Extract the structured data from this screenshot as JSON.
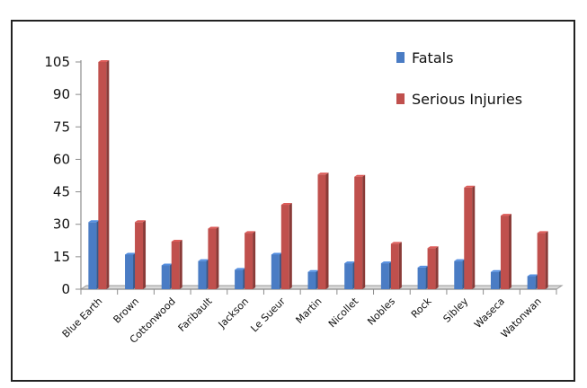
{
  "chart_data": {
    "type": "bar",
    "title": "",
    "xlabel": "",
    "ylabel": "",
    "categories": [
      "Blue Earth",
      "Brown",
      "Cottonwood",
      "Faribault",
      "Jackson",
      "Le Sueur",
      "Martin",
      "Nicollet",
      "Nobles",
      "Rock",
      "Sibley",
      "Waseca",
      "Watonwan"
    ],
    "series": [
      {
        "name": "Fatals",
        "color": "#4a7cc4",
        "values": [
          31,
          16,
          11,
          13,
          9,
          16,
          8,
          12,
          12,
          10,
          13,
          8,
          6
        ]
      },
      {
        "name": "Serious Injuries",
        "color": "#c0504d",
        "values": [
          105,
          31,
          22,
          28,
          26,
          39,
          53,
          52,
          21,
          19,
          47,
          34,
          26
        ]
      }
    ],
    "ylim": [
      0,
      105
    ],
    "yticks": [
      "0",
      "15",
      "30",
      "45",
      "60",
      "75",
      "90",
      "105"
    ],
    "legend_position": "top-right",
    "grid": false
  }
}
